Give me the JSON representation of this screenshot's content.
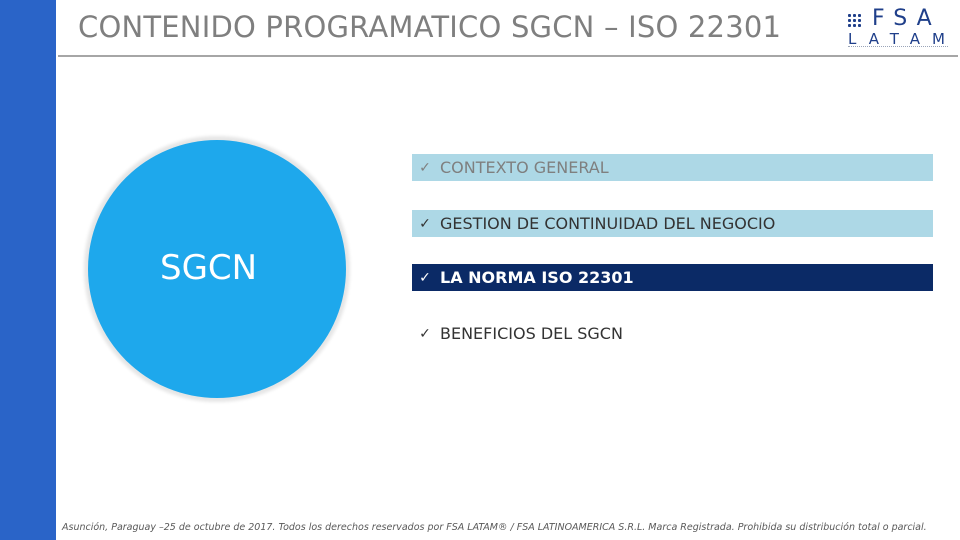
{
  "slide": {
    "title": "CONTENIDO PROGRAMATICO SGCN – ISO 22301",
    "logo": {
      "brand": "FSA",
      "sub": "LATAM"
    },
    "circle_label": "SGCN",
    "check_symbol": "ü",
    "items": [
      {
        "label": "CONTEXTO GENERAL",
        "state": "inactive"
      },
      {
        "label": "GESTION DE CONTINUIDAD DEL NEGOCIO",
        "state": "inactive"
      },
      {
        "label": "LA NORMA ISO 22301",
        "state": "active"
      },
      {
        "label": "BENEFICIOS DEL SGCN",
        "state": "plain"
      }
    ],
    "footer": "Asunción, Paraguay –25 de octubre de 2017. Todos los derechos reservados por FSA LATAM® / FSA LATINOAMERICA S.R.L. Marca Registrada. Prohibida su distribución total o parcial.",
    "colors": {
      "sidebar": "#2a64c8",
      "circle": "#1ea8ec",
      "item_bg": "#add8e6",
      "active_bg": "#0b2a66",
      "logo": "#1f3f8a"
    }
  }
}
